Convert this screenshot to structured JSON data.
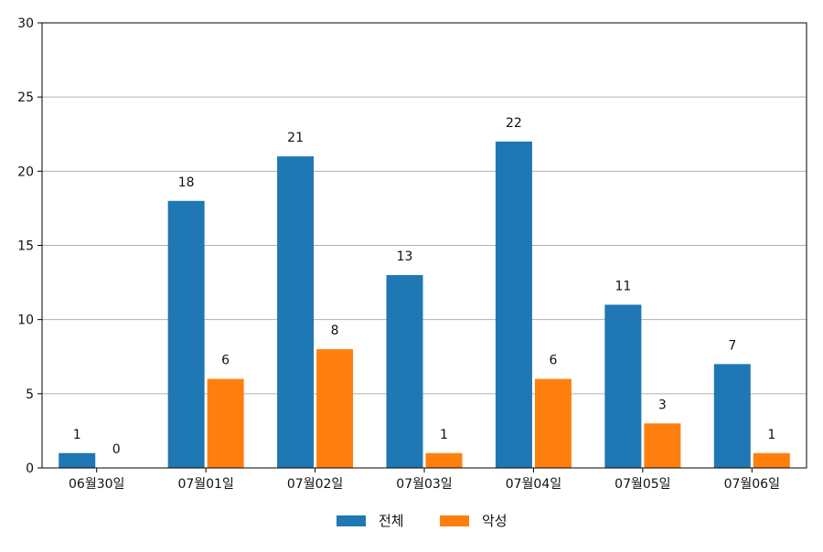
{
  "chart_data": {
    "type": "bar",
    "categories": [
      "06월30일",
      "07월01일",
      "07월02일",
      "07월03일",
      "07월04일",
      "07월05일",
      "07월06일"
    ],
    "series": [
      {
        "name": "전체",
        "values": [
          1,
          18,
          21,
          13,
          22,
          11,
          7
        ],
        "color": "#1f77b4"
      },
      {
        "name": "악성",
        "values": [
          0,
          6,
          8,
          1,
          6,
          3,
          1
        ],
        "color": "#ff7f0e"
      }
    ],
    "yticks": [
      "0",
      "5",
      "10",
      "15",
      "20",
      "25",
      "30"
    ],
    "ylim": [
      0,
      30
    ],
    "grid": true,
    "legend_position": "bottom-center",
    "gridline_color": "#b0b0b0"
  }
}
